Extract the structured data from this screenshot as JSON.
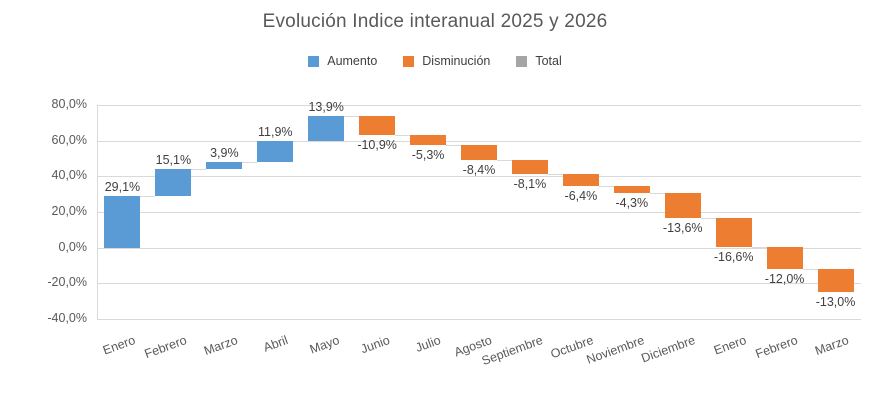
{
  "title": "Evolución Indice interanual 2025 y 2026",
  "legend": [
    {
      "label": "Aumento",
      "color": "#5B9BD5"
    },
    {
      "label": "Disminución",
      "color": "#ED7D31"
    },
    {
      "label": "Total",
      "color": "#A5A5A5"
    }
  ],
  "colors": {
    "increase": "#5B9BD5",
    "decrease": "#ED7D31",
    "total": "#A5A5A5",
    "gridline": "#D9D9D9",
    "title_text": "#595959",
    "axis_text": "#595959",
    "label_text": "#404040"
  },
  "chart_data": {
    "type": "bar",
    "subtype": "waterfall",
    "title": "Evolución Indice interanual 2025 y 2026",
    "categories": [
      "Enero",
      "Febrero",
      "Marzo",
      "Abril",
      "Mayo",
      "Junio",
      "Julio",
      "Agosto",
      "Septiembre",
      "Octubre",
      "Noviembre",
      "Diciembre",
      "Enero",
      "Febrero",
      "Marzo"
    ],
    "values": [
      29.1,
      15.1,
      3.9,
      11.9,
      13.9,
      -10.9,
      -5.3,
      -8.4,
      -8.1,
      -6.4,
      -4.3,
      -13.6,
      -16.6,
      -12.0,
      -13.0
    ],
    "labels": [
      "29,1%",
      "15,1%",
      "3,9%",
      "11,9%",
      "13,9%",
      "-10,9%",
      "-5,3%",
      "-8,4%",
      "-8,1%",
      "-6,4%",
      "-4,3%",
      "-13,6%",
      "-16,6%",
      "-12,0%",
      "-13,0%"
    ],
    "cumulative_end": [
      29.1,
      44.2,
      48.1,
      60.0,
      73.9,
      63.0,
      57.7,
      49.3,
      41.2,
      34.8,
      30.5,
      16.9,
      0.3,
      -11.7,
      -24.7
    ],
    "series": [
      {
        "name": "Aumento",
        "color": "#5B9BD5"
      },
      {
        "name": "Disminución",
        "color": "#ED7D31"
      },
      {
        "name": "Total",
        "color": "#A5A5A5"
      }
    ],
    "xlabel": "",
    "ylabel": "",
    "ylim": [
      -40,
      80
    ],
    "y_ticks": [
      {
        "value": 80,
        "label": "80,0%"
      },
      {
        "value": 60,
        "label": "60,0%"
      },
      {
        "value": 40,
        "label": "40,0%"
      },
      {
        "value": 20,
        "label": "20,0%"
      },
      {
        "value": 0,
        "label": "0,0%"
      },
      {
        "value": -20,
        "label": "-20,0%"
      },
      {
        "value": -40,
        "label": "-40,0%"
      }
    ],
    "grid": true,
    "legend_position": "top"
  }
}
